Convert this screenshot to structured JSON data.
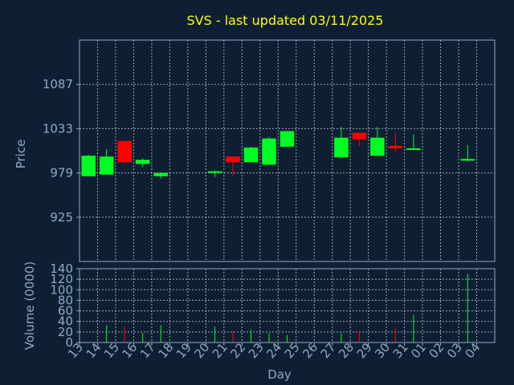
{
  "chart_data": [
    {
      "type": "candlestick",
      "title": "SVS - last updated 03/11/2025",
      "ylabel": "Price",
      "ylim": [
        871,
        1141
      ],
      "yticks": [
        "925",
        "979",
        "1033",
        "1087"
      ],
      "grid": true,
      "colors": {
        "up": "#00ff22",
        "down": "#ff0000",
        "title": "#ffff00",
        "axis_text": "#8fa8c8"
      },
      "candles": [
        {
          "day": "13",
          "open": 975,
          "high": 1001,
          "low": 975,
          "close": 1000
        },
        {
          "day": "14",
          "open": 977,
          "high": 1008,
          "low": 977,
          "close": 999
        },
        {
          "day": "15",
          "open": 1018,
          "high": 1018,
          "low": 991,
          "close": 992
        },
        {
          "day": "16",
          "open": 990,
          "high": 997,
          "low": 986,
          "close": 995
        },
        {
          "day": "17",
          "open": 975,
          "high": 979,
          "low": 972,
          "close": 979
        },
        {
          "day": "20",
          "open": 979,
          "high": 982,
          "low": 974,
          "close": 981
        },
        {
          "day": "21",
          "open": 999,
          "high": 999,
          "low": 976,
          "close": 992
        },
        {
          "day": "22",
          "open": 992,
          "high": 1011,
          "low": 992,
          "close": 1010
        },
        {
          "day": "23",
          "open": 989,
          "high": 1023,
          "low": 989,
          "close": 1021
        },
        {
          "day": "24",
          "open": 1011,
          "high": 1030,
          "low": 1011,
          "close": 1030
        },
        {
          "day": "27",
          "open": 998,
          "high": 1035,
          "low": 998,
          "close": 1022
        },
        {
          "day": "28",
          "open": 1028,
          "high": 1028,
          "low": 1012,
          "close": 1020
        },
        {
          "day": "29",
          "open": 1000,
          "high": 1035,
          "low": 1000,
          "close": 1022
        },
        {
          "day": "30",
          "open": 1012,
          "high": 1028,
          "low": 1005,
          "close": 1009
        },
        {
          "day": "31",
          "open": 1007,
          "high": 1026,
          "low": 1007,
          "close": 1009
        },
        {
          "day": "03",
          "open": 996,
          "high": 1013,
          "low": 993,
          "close": 996
        }
      ]
    },
    {
      "type": "bar",
      "ylabel": "Volume (0000)",
      "xlabel": "Day",
      "ylim": [
        0,
        140
      ],
      "yticks": [
        "0",
        "20",
        "40",
        "60",
        "80",
        "100",
        "120",
        "140"
      ],
      "categories": [
        "13",
        "14",
        "15",
        "16",
        "17",
        "18",
        "19",
        "20",
        "21",
        "22",
        "23",
        "24",
        "25",
        "26",
        "27",
        "28",
        "29",
        "30",
        "31",
        "01",
        "02",
        "03",
        "04"
      ],
      "volumes": [
        {
          "day": "14",
          "value": 33,
          "dir": "up"
        },
        {
          "day": "15",
          "value": 30,
          "dir": "down"
        },
        {
          "day": "16",
          "value": 18,
          "dir": "up"
        },
        {
          "day": "17",
          "value": 33,
          "dir": "up"
        },
        {
          "day": "20",
          "value": 30,
          "dir": "up"
        },
        {
          "day": "21",
          "value": 22,
          "dir": "down"
        },
        {
          "day": "22",
          "value": 24,
          "dir": "up"
        },
        {
          "day": "23",
          "value": 18,
          "dir": "up"
        },
        {
          "day": "24",
          "value": 14,
          "dir": "up"
        },
        {
          "day": "27",
          "value": 18,
          "dir": "up"
        },
        {
          "day": "28",
          "value": 22,
          "dir": "down"
        },
        {
          "day": "30",
          "value": 28,
          "dir": "down"
        },
        {
          "day": "31",
          "value": 52,
          "dir": "up"
        },
        {
          "day": "03",
          "value": 130,
          "dir": "up"
        }
      ]
    }
  ]
}
